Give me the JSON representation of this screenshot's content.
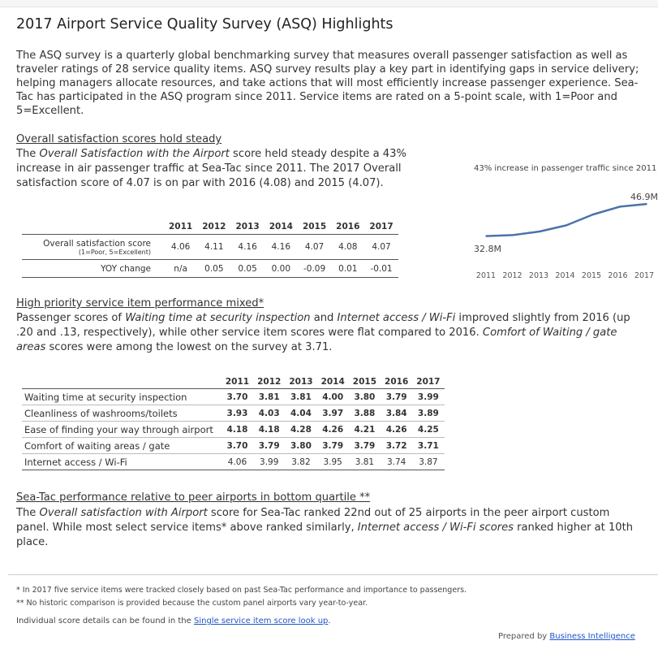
{
  "title": "2017 Airport Service Quality Survey (ASQ) Highlights",
  "intro": "The ASQ survey is a quarterly global benchmarking survey that measures overall passenger satisfaction as well as traveler ratings of 28 service quality items. ASQ survey results play a key part in identifying gaps in service delivery; helping managers allocate resources, and take actions that will most efficiently increase passenger experience.  Sea-Tac has participated in the ASQ program since 2011. Service items are rated on a 5-point scale, with 1=Poor and 5=Excellent.",
  "section1": {
    "heading": "Overall satisfaction scores hold steady",
    "p_pre": "The ",
    "p_em": "Overall Satisfaction with the Airport",
    "p_post": " score held steady despite a 43% increase in air passenger traffic at Sea-Tac since 2011. The 2017 Overall satisfaction score of 4.07 is on par with 2016 (4.08) and 2015 (4.07)."
  },
  "table1": {
    "years": [
      "2011",
      "2012",
      "2013",
      "2014",
      "2015",
      "2016",
      "2017"
    ],
    "row1_label": "Overall satisfaction score",
    "row1_sub": "(1=Poor, 5=Excellent)",
    "row1": [
      "4.06",
      "4.11",
      "4.16",
      "4.16",
      "4.07",
      "4.08",
      "4.07"
    ],
    "row2_label": "YOY change",
    "row2": [
      "n/a",
      "0.05",
      "0.05",
      "0.00",
      "-0.09",
      "0.01",
      "-0.01"
    ]
  },
  "traffic_chart": {
    "title": "43% increase in passenger traffic since 2011",
    "start_label": "32.8M",
    "end_label": "46.9M",
    "years": [
      "2011",
      "2012",
      "2013",
      "2014",
      "2015",
      "2016",
      "2017"
    ],
    "line_color": "#4a74a8"
  },
  "chart_data": {
    "type": "line",
    "title": "43% increase in passenger traffic since 2011",
    "categories": [
      "2011",
      "2012",
      "2013",
      "2014",
      "2015",
      "2016",
      "2017"
    ],
    "series": [
      {
        "values": [
          32.8,
          33.2,
          34.8,
          37.5,
          42.3,
          45.7,
          46.9
        ]
      }
    ],
    "ylim": [
      28,
      48
    ],
    "grid": false
  },
  "section2": {
    "heading": "High priority service item performance mixed*",
    "p1": "Passenger scores of ",
    "e1": "Waiting time at security inspection",
    "p2": " and ",
    "e2": "Internet access / Wi-Fi",
    "p3": " improved slightly from 2016 (up .20 and .13, respectively), while other service item scores were flat compared to 2016. ",
    "e3": "Comfort of Waiting / gate areas",
    "p4": " scores were among the lowest on the survey at 3.71."
  },
  "table2": {
    "years": [
      "2011",
      "2012",
      "2013",
      "2014",
      "2015",
      "2016",
      "2017"
    ],
    "rows": [
      {
        "label": "Waiting time at security inspection",
        "values": [
          "3.70",
          "3.81",
          "3.81",
          "4.00",
          "3.80",
          "3.79",
          "3.99"
        ]
      },
      {
        "label": "Cleanliness of washrooms/toilets",
        "values": [
          "3.93",
          "4.03",
          "4.04",
          "3.97",
          "3.88",
          "3.84",
          "3.89"
        ]
      },
      {
        "label": "Ease of finding your way through airport",
        "values": [
          "4.18",
          "4.18",
          "4.28",
          "4.26",
          "4.21",
          "4.26",
          "4.25"
        ]
      },
      {
        "label": "Comfort of waiting areas / gate",
        "values": [
          "3.70",
          "3.79",
          "3.80",
          "3.79",
          "3.79",
          "3.72",
          "3.71"
        ]
      },
      {
        "label": "Internet access / Wi-Fi",
        "values": [
          "4.06",
          "3.99",
          "3.82",
          "3.95",
          "3.81",
          "3.74",
          "3.87"
        ]
      }
    ]
  },
  "section3": {
    "heading": "Sea-Tac performance relative to peer airports in bottom quartile **",
    "p1": "The ",
    "e1": "Overall satisfaction with Airport",
    "p2": " score for Sea-Tac ranked 22nd out of 25 airports in the peer airport custom panel.  While most select service items* above ranked similarly, ",
    "e2": "Internet access / Wi-Fi scores",
    "p3": " ranked higher at 10th place."
  },
  "footnotes": {
    "f1": "*  In 2017 five service items were tracked closely based on past Sea-Tac performance and importance to passengers.",
    "f2": "** No historic comparison is provided because the custom panel airports vary year-to-year.",
    "f3_pre": "Individual score details can be found in the ",
    "f3_link": "Single service item score look up",
    "f3_post": "."
  },
  "credit": {
    "pre": "Prepared by ",
    "link": "Business Intelligence"
  }
}
